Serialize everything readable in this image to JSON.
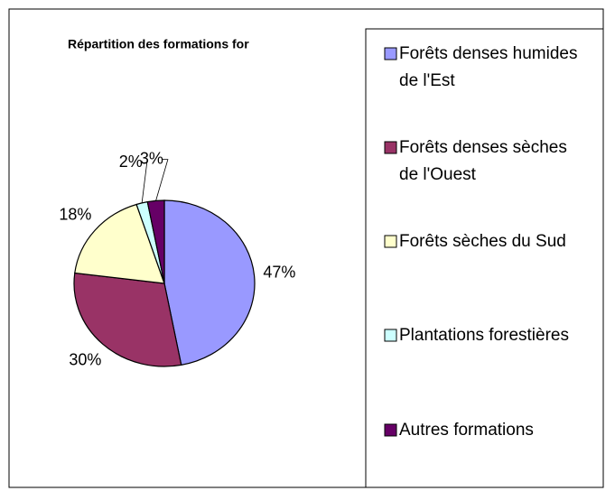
{
  "chart_data": {
    "type": "pie",
    "title": "Répartition des formations for",
    "categories": [
      "Forêts denses humides de l'Est",
      "Forêts denses sèches de l'Ouest",
      "Forêts sèches du Sud",
      "Plantations forestières",
      "Autres formations"
    ],
    "values": [
      47,
      30,
      18,
      2,
      3
    ],
    "value_labels": [
      "47%",
      "30%",
      "18%",
      "2%",
      "3%"
    ],
    "colors": [
      "#9999ff",
      "#993366",
      "#ffffcc",
      "#ccffff",
      "#660066"
    ]
  }
}
